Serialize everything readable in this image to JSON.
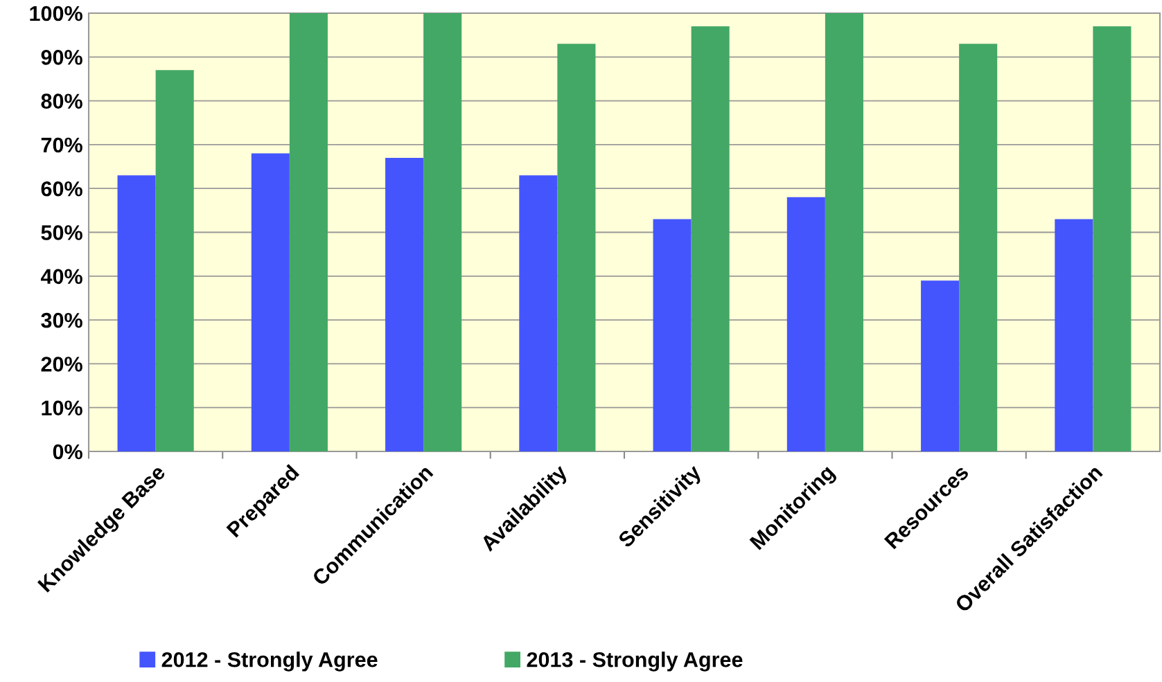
{
  "chart_data": {
    "type": "bar",
    "categories": [
      "Knowledge Base",
      "Prepared",
      "Communication",
      "Availability",
      "Sensitivity",
      "Monitoring",
      "Resources",
      "Overall Satisfaction"
    ],
    "series": [
      {
        "name": "2012 - Strongly Agree",
        "color": "#4455fe",
        "values": [
          63,
          68,
          67,
          63,
          53,
          58,
          39,
          53
        ]
      },
      {
        "name": "2013 - Strongly Agree",
        "color": "#43a866",
        "values": [
          87,
          100,
          100,
          93,
          97,
          100,
          93,
          97
        ]
      }
    ],
    "ylim": [
      0,
      100
    ],
    "yticks": [
      {
        "value": 0,
        "label": "0%"
      },
      {
        "value": 10,
        "label": "10%"
      },
      {
        "value": 20,
        "label": "20%"
      },
      {
        "value": 30,
        "label": "30%"
      },
      {
        "value": 40,
        "label": "40%"
      },
      {
        "value": 50,
        "label": "50%"
      },
      {
        "value": 60,
        "label": "60%"
      },
      {
        "value": 70,
        "label": "70%"
      },
      {
        "value": 80,
        "label": "80%"
      },
      {
        "value": 90,
        "label": "90%"
      },
      {
        "value": 100,
        "label": "100%"
      }
    ],
    "grid": "y",
    "legend": "bottom"
  }
}
